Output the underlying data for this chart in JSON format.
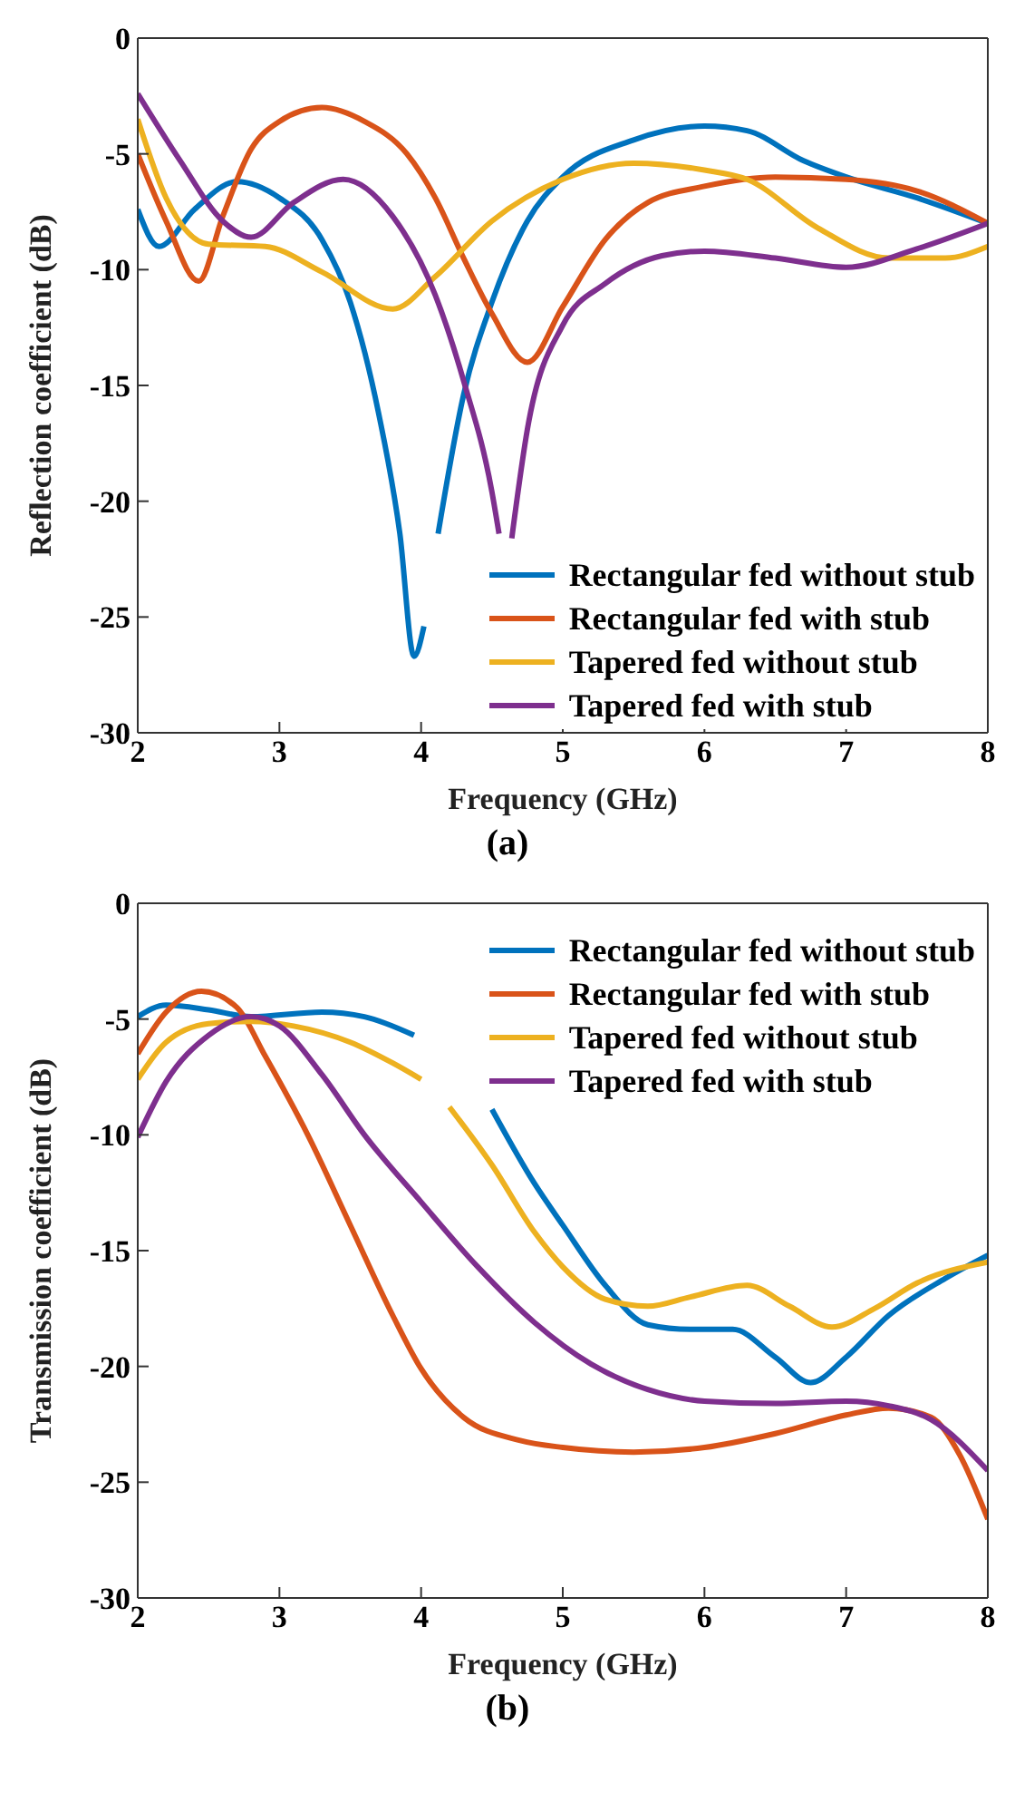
{
  "chart_data": [
    {
      "type": "line",
      "xlabel": "Frequency (GHz)",
      "ylabel": "Reflection coefficient (dB)",
      "annotations": [
        "(a)"
      ],
      "xlim": [
        2,
        8
      ],
      "xticks": [
        2,
        3,
        4,
        5,
        6,
        7,
        8
      ],
      "ylim": [
        -30,
        0
      ],
      "yticks": [
        -30,
        -25,
        -20,
        -15,
        -10,
        -5,
        0
      ],
      "grid": false,
      "legend": "bottom right",
      "marker": "none",
      "line_style": "solid",
      "series": [
        {
          "name": "Rectangular fed without stub",
          "color": "#0072bd",
          "x": [
            2,
            2.15,
            2.4,
            2.7,
            3.0,
            3.3,
            3.5,
            3.7,
            3.85,
            3.95,
            4.02,
            4.08,
            4.12,
            4.3,
            4.5,
            4.75,
            5.0,
            5.5,
            6.0,
            6.3,
            6.7,
            7.0,
            7.5,
            8
          ],
          "values": [
            -7.4,
            -9.0,
            -7.4,
            -6.2,
            -6.9,
            -8.7,
            -11.4,
            -16.2,
            -21.4,
            -26.7,
            -25.4,
            null,
            -21.4,
            -15.4,
            -11.4,
            -7.9,
            -6.0,
            -4.4,
            -3.8,
            -4.0,
            -5.3,
            -6.0,
            -6.9,
            -8.0
          ]
        },
        {
          "name": "Rectangular fed with stub",
          "color": "#d95319",
          "x": [
            2,
            2.2,
            2.43,
            2.6,
            2.8,
            3.0,
            3.3,
            3.6,
            3.9,
            4.1,
            4.3,
            4.5,
            4.75,
            5.0,
            5.3,
            5.6,
            6.0,
            6.5,
            7.0,
            7.5,
            8
          ],
          "values": [
            -5.0,
            -7.9,
            -10.5,
            -7.7,
            -4.8,
            -3.6,
            -3.0,
            -3.6,
            -5.0,
            -6.9,
            -9.5,
            -11.9,
            -14.0,
            -11.6,
            -8.7,
            -7.1,
            -6.4,
            -6.0,
            -6.1,
            -6.6,
            -8.0
          ]
        },
        {
          "name": "Tapered fed without stub",
          "color": "#edb120",
          "x": [
            2,
            2.2,
            2.5,
            2.9,
            3.3,
            3.8,
            4.1,
            4.5,
            5.0,
            5.5,
            6.0,
            6.3,
            6.8,
            7.3,
            7.7,
            8
          ],
          "values": [
            -3.5,
            -6.9,
            -8.9,
            -9.0,
            -10.1,
            -11.7,
            -10.3,
            -7.9,
            -6.1,
            -5.4,
            -5.7,
            -6.1,
            -8.2,
            -9.5,
            -9.5,
            -9.0
          ]
        },
        {
          "name": "Tapered fed with stub",
          "color": "#7e2f8e",
          "x": [
            2,
            2.3,
            2.6,
            2.8,
            3.1,
            3.45,
            3.8,
            4.1,
            4.3,
            4.5,
            4.55,
            4.6,
            4.64,
            4.75,
            5.0,
            5.3,
            5.7,
            6.0,
            6.5,
            7.0,
            7.5,
            8
          ],
          "values": [
            -2.4,
            -5.3,
            -7.9,
            -8.6,
            -7.1,
            -6.1,
            -7.7,
            -11.1,
            -14.8,
            -19.6,
            -21.4,
            null,
            -21.6,
            -16.9,
            -12.4,
            -10.6,
            -9.4,
            -9.2,
            -9.5,
            -9.9,
            -9.1,
            -8.0
          ]
        }
      ]
    },
    {
      "type": "line",
      "xlabel": "Frequency (GHz)",
      "ylabel": "Transmission coefficient (dB)",
      "annotations": [
        "(b)"
      ],
      "xlim": [
        2,
        8
      ],
      "xticks": [
        2,
        3,
        4,
        5,
        6,
        7,
        8
      ],
      "ylim": [
        -30,
        0
      ],
      "yticks": [
        -30,
        -25,
        -20,
        -15,
        -10,
        -5,
        0
      ],
      "grid": false,
      "legend": "top right",
      "marker": "none",
      "line_style": "solid",
      "series": [
        {
          "name": "Rectangular fed without stub",
          "color": "#0072bd",
          "x": [
            2,
            2.2,
            2.5,
            2.8,
            3.3,
            3.6,
            3.95,
            4.2,
            4.5,
            4.8,
            5.0,
            5.3,
            5.6,
            5.9,
            6.2,
            6.5,
            6.75,
            7.0,
            7.3,
            7.7,
            8
          ],
          "values": [
            -4.9,
            -4.4,
            -4.6,
            -4.9,
            -4.7,
            -4.9,
            -5.7,
            null,
            -8.9,
            -12.1,
            -13.9,
            -16.5,
            -18.2,
            -18.4,
            -18.4,
            -19.6,
            -20.7,
            -19.6,
            -17.8,
            -16.2,
            -15.2
          ]
        },
        {
          "name": "Rectangular fed with stub",
          "color": "#d95319",
          "x": [
            2,
            2.2,
            2.45,
            2.7,
            2.9,
            3.2,
            3.5,
            3.8,
            4.0,
            4.3,
            4.7,
            5.0,
            5.5,
            6.0,
            6.5,
            7.0,
            7.3,
            7.6,
            7.8,
            8
          ],
          "values": [
            -6.5,
            -4.7,
            -3.8,
            -4.5,
            -6.6,
            -10.0,
            -13.9,
            -17.8,
            -20.1,
            -22.2,
            -23.2,
            -23.5,
            -23.7,
            -23.5,
            -22.9,
            -22.1,
            -21.8,
            -22.2,
            -23.8,
            -26.6
          ]
        },
        {
          "name": "Tapered fed without stub",
          "color": "#edb120",
          "x": [
            2,
            2.2,
            2.5,
            2.8,
            3.1,
            3.5,
            3.8,
            4.0,
            4.1,
            4.2,
            4.5,
            4.8,
            5.0,
            5.3,
            5.6,
            5.9,
            6.3,
            6.6,
            6.9,
            7.2,
            7.5,
            8
          ],
          "values": [
            -7.6,
            -6.0,
            -5.2,
            -5.1,
            -5.3,
            -6.0,
            -6.9,
            -7.6,
            null,
            -8.8,
            -11.3,
            -14.2,
            -15.7,
            -17.1,
            -17.4,
            -17.0,
            -16.5,
            -17.4,
            -18.3,
            -17.5,
            -16.4,
            -15.5
          ]
        },
        {
          "name": "Tapered fed with stub",
          "color": "#7e2f8e",
          "x": [
            2,
            2.2,
            2.5,
            2.8,
            3.0,
            3.3,
            3.6,
            4.0,
            4.4,
            4.8,
            5.2,
            5.6,
            6.0,
            6.5,
            7.0,
            7.3,
            7.6,
            8
          ],
          "values": [
            -10.1,
            -7.7,
            -5.7,
            -4.9,
            -5.3,
            -7.4,
            -10.0,
            -12.9,
            -15.7,
            -18.1,
            -19.9,
            -21.0,
            -21.5,
            -21.6,
            -21.5,
            -21.7,
            -22.3,
            -24.5
          ]
        }
      ]
    }
  ]
}
